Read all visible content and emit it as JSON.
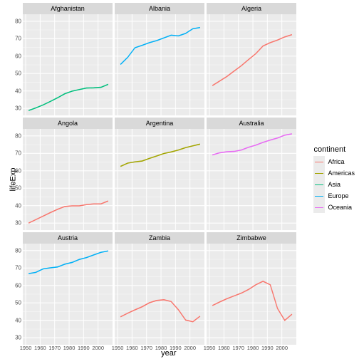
{
  "axis": {
    "y_title": "lifeExp",
    "x_title": "year"
  },
  "layout": {
    "background_color": "#ffffff",
    "panel_bg": "#ebebeb",
    "strip_bg": "#d9d9d9",
    "grid_major_color": "#ffffff",
    "grid_minor_color": "#f5f5f5",
    "text_color": "#4d4d4d",
    "xlim": [
      1948,
      2010
    ],
    "ylim": [
      26,
      84
    ],
    "y_ticks": [
      30,
      40,
      50,
      60,
      70,
      80
    ],
    "x_ticks": [
      1950,
      1960,
      1970,
      1980,
      1990,
      2000
    ],
    "line_width": 1.1
  },
  "legend": {
    "title": "continent",
    "items": [
      {
        "label": "Africa",
        "color": "#f8766d"
      },
      {
        "label": "Americas",
        "color": "#a3a500"
      },
      {
        "label": "Asia",
        "color": "#00bf7d"
      },
      {
        "label": "Europe",
        "color": "#00b0f6"
      },
      {
        "label": "Oceania",
        "color": "#e76bf3"
      }
    ]
  },
  "continent_colors": {
    "Africa": "#f8766d",
    "Americas": "#a3a500",
    "Asia": "#00bf7d",
    "Europe": "#00b0f6",
    "Oceania": "#e76bf3"
  },
  "x_values": [
    1952,
    1957,
    1962,
    1967,
    1972,
    1977,
    1982,
    1987,
    1992,
    1997,
    2002,
    2007
  ],
  "facets": [
    {
      "title": "Afghanistan",
      "continent": "Asia",
      "y": [
        28.8,
        30.3,
        32.0,
        34.0,
        36.1,
        38.4,
        39.9,
        40.8,
        41.7,
        41.8,
        42.1,
        43.8
      ]
    },
    {
      "title": "Albania",
      "continent": "Europe",
      "y": [
        55.2,
        59.3,
        64.8,
        66.2,
        67.7,
        68.9,
        70.4,
        72.0,
        71.6,
        73.0,
        75.7,
        76.4
      ]
    },
    {
      "title": "Algeria",
      "continent": "Africa",
      "y": [
        43.1,
        45.7,
        48.3,
        51.4,
        54.5,
        58.0,
        61.4,
        65.8,
        67.7,
        69.2,
        71.0,
        72.3
      ]
    },
    {
      "title": "Angola",
      "continent": "Africa",
      "y": [
        30.0,
        32.0,
        34.0,
        36.0,
        37.9,
        39.5,
        39.9,
        39.9,
        40.6,
        41.0,
        41.0,
        42.7
      ]
    },
    {
      "title": "Argentina",
      "continent": "Americas",
      "y": [
        62.5,
        64.4,
        65.1,
        65.6,
        67.1,
        68.5,
        69.9,
        70.8,
        71.9,
        73.3,
        74.3,
        75.3
      ]
    },
    {
      "title": "Australia",
      "continent": "Oceania",
      "y": [
        69.1,
        70.3,
        70.9,
        71.1,
        71.9,
        73.5,
        74.7,
        76.3,
        77.6,
        78.8,
        80.4,
        81.2
      ]
    },
    {
      "title": "Austria",
      "continent": "Europe",
      "y": [
        66.8,
        67.5,
        69.5,
        70.1,
        70.6,
        72.2,
        73.2,
        74.9,
        76.0,
        77.5,
        79.0,
        79.8
      ]
    },
    {
      "title": "Zambia",
      "continent": "Africa",
      "y": [
        42.0,
        44.1,
        46.0,
        47.8,
        50.1,
        51.4,
        51.8,
        50.8,
        46.1,
        40.2,
        39.2,
        42.4
      ]
    },
    {
      "title": "Zimbabwe",
      "continent": "Africa",
      "y": [
        48.5,
        50.5,
        52.4,
        54.0,
        55.6,
        57.7,
        60.4,
        62.4,
        60.4,
        46.8,
        40.0,
        43.5
      ]
    }
  ]
}
